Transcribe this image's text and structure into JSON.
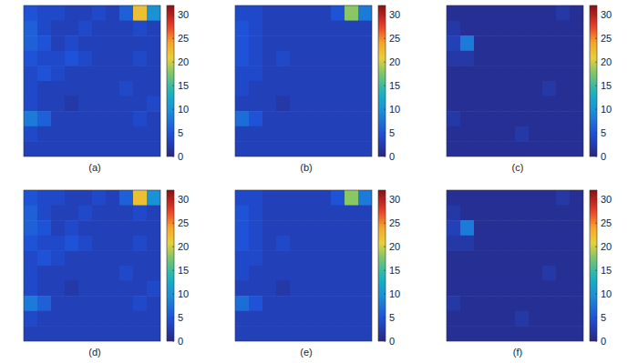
{
  "chart_data": [
    {
      "type": "heatmap",
      "title": "(a)",
      "zlim": [
        0,
        32
      ],
      "zticks": [
        0,
        5,
        10,
        15,
        20,
        25,
        30
      ],
      "cells": [
        [
          5,
          4,
          4,
          3,
          3,
          4,
          3,
          6,
          22,
          10
        ],
        [
          6,
          4,
          3,
          3,
          4,
          3,
          3,
          3,
          4,
          3
        ],
        [
          6,
          5,
          3,
          4,
          3,
          3,
          3,
          3,
          3,
          3
        ],
        [
          5,
          4,
          4,
          5,
          4,
          3,
          3,
          3,
          4,
          3
        ],
        [
          4,
          5,
          4,
          3,
          3,
          3,
          3,
          3,
          3,
          3
        ],
        [
          4,
          3,
          3,
          3,
          3,
          3,
          3,
          4,
          3,
          3
        ],
        [
          4,
          3,
          3,
          2,
          3,
          3,
          3,
          3,
          3,
          4
        ],
        [
          8,
          6,
          3,
          3,
          3,
          3,
          3,
          3,
          4,
          3
        ],
        [
          4,
          3,
          3,
          3,
          3,
          3,
          3,
          3,
          3,
          3
        ],
        [
          3,
          3,
          3,
          3,
          3,
          3,
          3,
          3,
          3,
          3
        ]
      ]
    },
    {
      "type": "heatmap",
      "title": "(b)",
      "zlim": [
        0,
        32
      ],
      "zticks": [
        0,
        5,
        10,
        15,
        20,
        25,
        30
      ],
      "cells": [
        [
          4,
          4,
          3,
          3,
          3,
          3,
          3,
          5,
          18,
          8
        ],
        [
          5,
          4,
          3,
          3,
          3,
          3,
          3,
          3,
          3,
          3
        ],
        [
          5,
          4,
          3,
          3,
          3,
          3,
          3,
          3,
          3,
          3
        ],
        [
          5,
          4,
          3,
          4,
          3,
          3,
          3,
          3,
          3,
          3
        ],
        [
          4,
          4,
          3,
          3,
          3,
          3,
          3,
          3,
          3,
          3
        ],
        [
          4,
          3,
          3,
          3,
          3,
          3,
          3,
          3,
          3,
          3
        ],
        [
          3,
          3,
          3,
          2,
          3,
          3,
          3,
          3,
          3,
          3
        ],
        [
          7,
          5,
          3,
          3,
          3,
          3,
          3,
          3,
          3,
          3
        ],
        [
          3,
          3,
          3,
          3,
          3,
          3,
          3,
          3,
          3,
          3
        ],
        [
          3,
          3,
          3,
          3,
          3,
          3,
          3,
          3,
          3,
          3
        ]
      ]
    },
    {
      "type": "heatmap",
      "title": "(c)",
      "zlim": [
        0,
        32
      ],
      "zticks": [
        0,
        5,
        10,
        15,
        20,
        25,
        30
      ],
      "cells": [
        [
          1,
          1,
          1,
          1,
          1,
          1,
          1,
          1,
          2,
          1
        ],
        [
          2,
          1,
          1,
          1,
          1,
          1,
          1,
          1,
          1,
          1
        ],
        [
          3,
          8,
          1,
          1,
          1,
          1,
          1,
          1,
          1,
          1
        ],
        [
          2,
          2,
          1,
          1,
          1,
          1,
          1,
          1,
          1,
          1
        ],
        [
          1,
          1,
          1,
          1,
          1,
          1,
          1,
          1,
          1,
          1
        ],
        [
          1,
          1,
          1,
          1,
          1,
          1,
          1,
          2,
          1,
          1
        ],
        [
          1,
          1,
          1,
          1,
          1,
          1,
          1,
          1,
          1,
          1
        ],
        [
          2,
          1,
          1,
          1,
          1,
          1,
          1,
          1,
          1,
          1
        ],
        [
          1,
          1,
          1,
          1,
          1,
          2,
          1,
          1,
          1,
          1
        ],
        [
          1,
          1,
          1,
          1,
          1,
          1,
          1,
          1,
          1,
          1
        ]
      ]
    },
    {
      "type": "heatmap",
      "title": "(d)",
      "zlim": [
        0,
        32
      ],
      "zticks": [
        0,
        5,
        10,
        15,
        20,
        25,
        30
      ],
      "cells": [
        [
          5,
          4,
          4,
          3,
          3,
          4,
          3,
          6,
          22,
          10
        ],
        [
          6,
          4,
          3,
          3,
          4,
          3,
          3,
          3,
          4,
          3
        ],
        [
          6,
          5,
          3,
          4,
          3,
          3,
          3,
          3,
          3,
          3
        ],
        [
          5,
          4,
          4,
          5,
          4,
          3,
          3,
          3,
          4,
          3
        ],
        [
          4,
          5,
          4,
          3,
          3,
          3,
          3,
          3,
          3,
          3
        ],
        [
          4,
          3,
          3,
          3,
          3,
          3,
          3,
          4,
          3,
          3
        ],
        [
          4,
          3,
          3,
          2,
          3,
          3,
          3,
          3,
          3,
          4
        ],
        [
          8,
          6,
          3,
          3,
          3,
          3,
          3,
          3,
          4,
          3
        ],
        [
          4,
          3,
          3,
          3,
          3,
          3,
          3,
          3,
          3,
          3
        ],
        [
          3,
          3,
          3,
          3,
          3,
          3,
          3,
          3,
          3,
          3
        ]
      ]
    },
    {
      "type": "heatmap",
      "title": "(e)",
      "zlim": [
        0,
        32
      ],
      "zticks": [
        0,
        5,
        10,
        15,
        20,
        25,
        30
      ],
      "cells": [
        [
          4,
          4,
          3,
          3,
          3,
          3,
          3,
          5,
          18,
          8
        ],
        [
          5,
          4,
          3,
          3,
          3,
          3,
          3,
          3,
          3,
          3
        ],
        [
          5,
          4,
          3,
          3,
          3,
          3,
          3,
          3,
          3,
          3
        ],
        [
          5,
          4,
          3,
          4,
          3,
          3,
          3,
          3,
          3,
          3
        ],
        [
          4,
          4,
          3,
          3,
          3,
          3,
          3,
          3,
          3,
          3
        ],
        [
          4,
          3,
          3,
          3,
          3,
          3,
          3,
          3,
          3,
          3
        ],
        [
          3,
          3,
          3,
          2,
          3,
          3,
          3,
          3,
          3,
          3
        ],
        [
          7,
          5,
          3,
          3,
          3,
          3,
          3,
          3,
          3,
          3
        ],
        [
          3,
          3,
          3,
          3,
          3,
          3,
          3,
          3,
          3,
          3
        ],
        [
          3,
          3,
          3,
          3,
          3,
          3,
          3,
          3,
          3,
          3
        ]
      ]
    },
    {
      "type": "heatmap",
      "title": "(f)",
      "zlim": [
        0,
        32
      ],
      "zticks": [
        0,
        5,
        10,
        15,
        20,
        25,
        30
      ],
      "cells": [
        [
          1,
          1,
          1,
          1,
          1,
          1,
          1,
          1,
          2,
          1
        ],
        [
          2,
          1,
          1,
          1,
          1,
          1,
          1,
          1,
          1,
          1
        ],
        [
          3,
          8,
          1,
          1,
          1,
          1,
          1,
          1,
          1,
          1
        ],
        [
          2,
          2,
          1,
          1,
          1,
          1,
          1,
          1,
          1,
          1
        ],
        [
          1,
          1,
          1,
          1,
          1,
          1,
          1,
          1,
          1,
          1
        ],
        [
          1,
          1,
          1,
          1,
          1,
          1,
          1,
          2,
          1,
          1
        ],
        [
          1,
          1,
          1,
          1,
          1,
          1,
          1,
          1,
          1,
          1
        ],
        [
          2,
          1,
          1,
          1,
          1,
          1,
          1,
          1,
          1,
          1
        ],
        [
          1,
          1,
          1,
          1,
          1,
          2,
          1,
          1,
          1,
          1
        ],
        [
          1,
          1,
          1,
          1,
          1,
          1,
          1,
          1,
          1,
          1
        ]
      ]
    }
  ]
}
